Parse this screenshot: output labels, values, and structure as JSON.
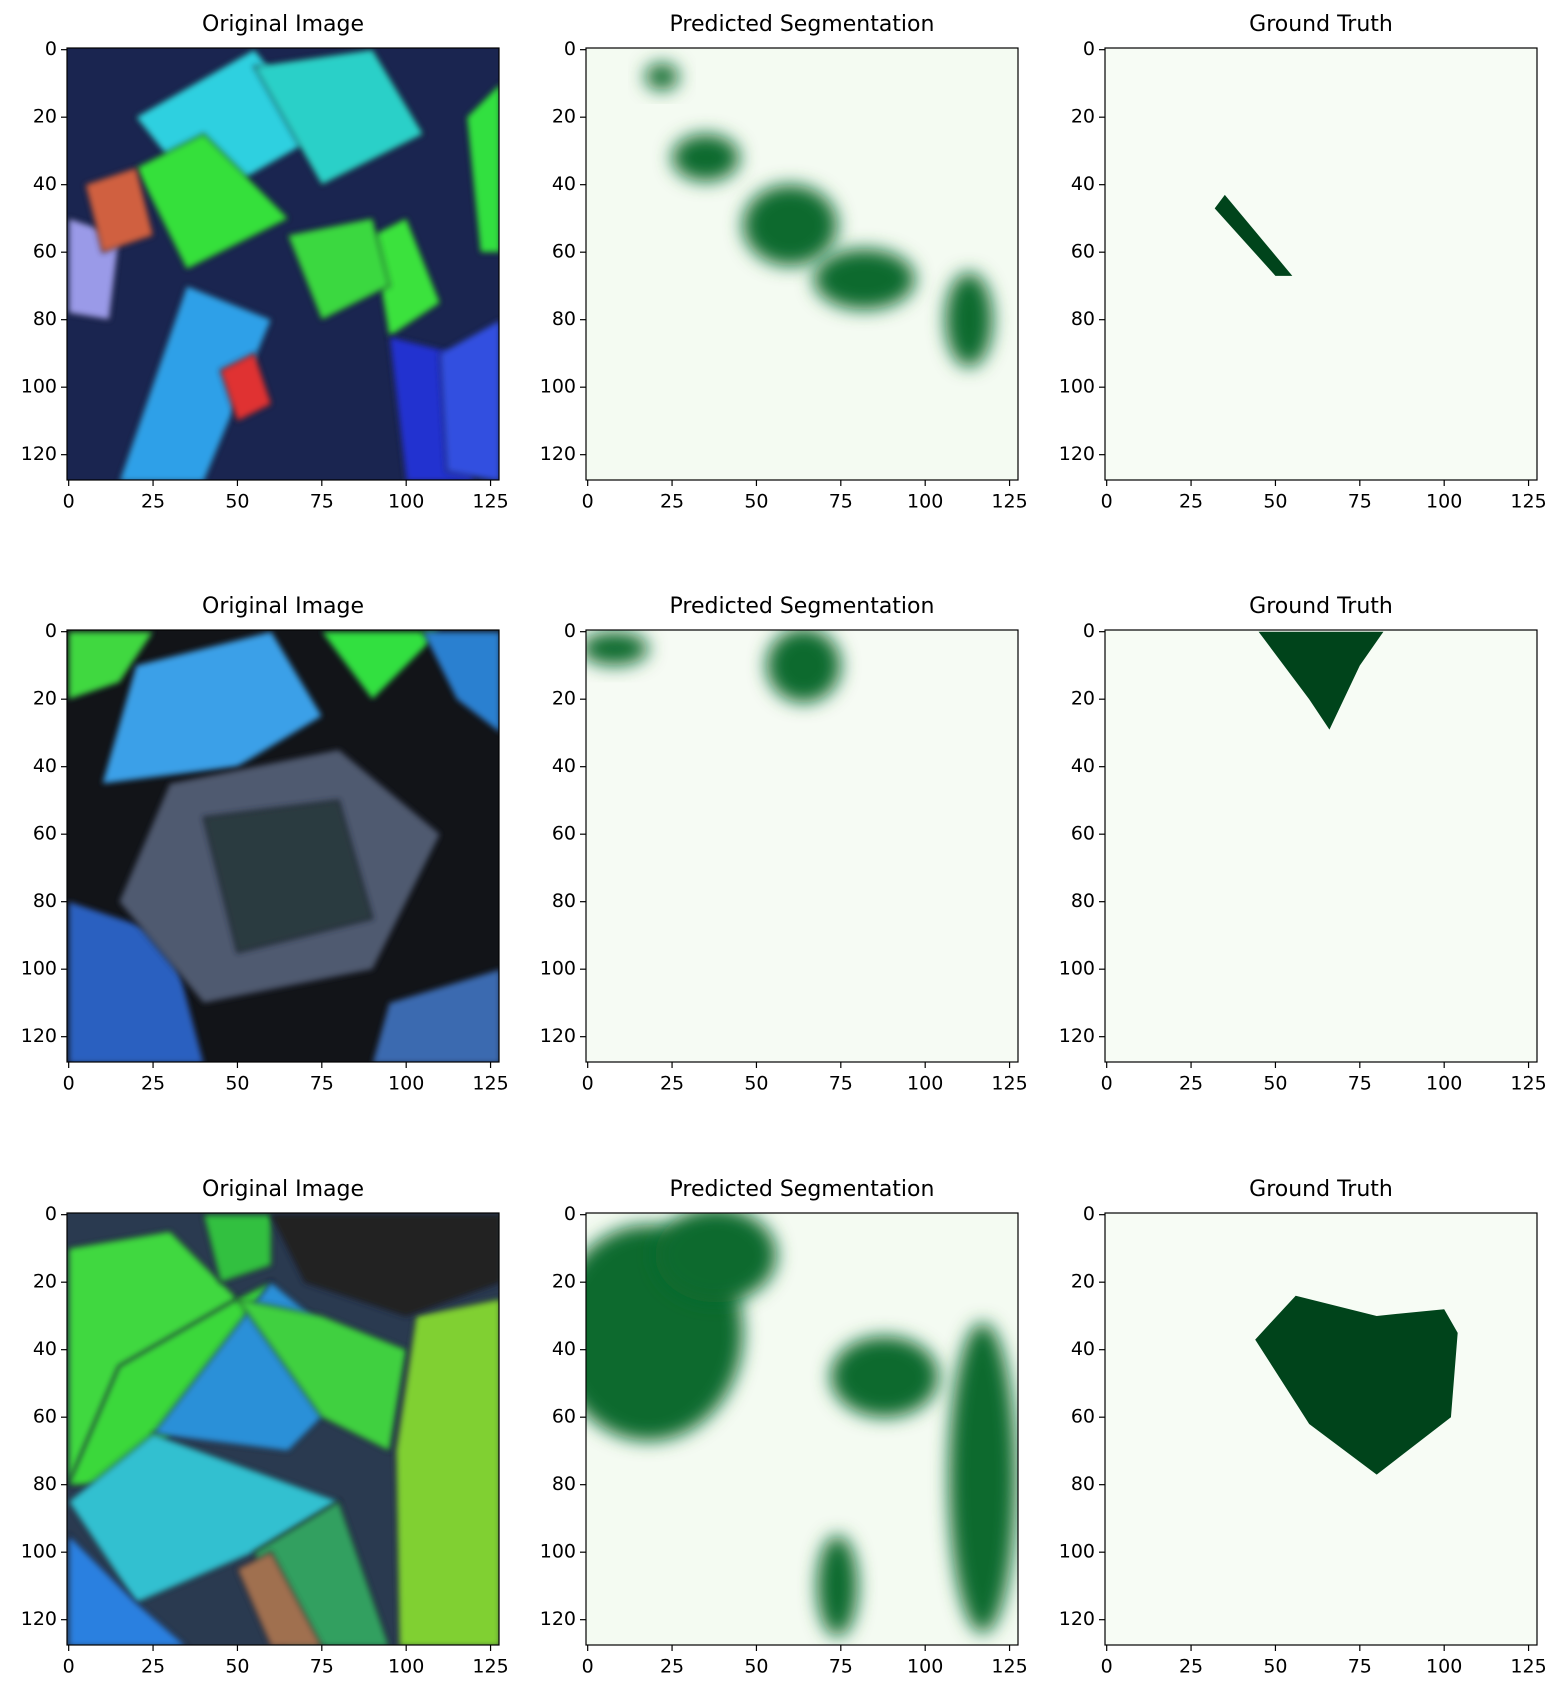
{
  "chart_data": [
    {
      "type": "image",
      "title": "Original Image",
      "xlim": [
        -0.5,
        127.5
      ],
      "ylim": [
        127.5,
        -0.5
      ],
      "xticks": [
        0,
        25,
        50,
        75,
        100,
        125
      ],
      "yticks": [
        0,
        20,
        40,
        60,
        80,
        100,
        120
      ]
    },
    {
      "type": "image",
      "title": "Predicted Segmentation",
      "xlim": [
        -0.5,
        127.5
      ],
      "ylim": [
        127.5,
        -0.5
      ],
      "xticks": [
        0,
        25,
        50,
        75,
        100,
        125
      ],
      "yticks": [
        0,
        20,
        40,
        60,
        80,
        100,
        120
      ]
    },
    {
      "type": "image",
      "title": "Ground Truth",
      "xlim": [
        -0.5,
        127.5
      ],
      "ylim": [
        127.5,
        -0.5
      ],
      "xticks": [
        0,
        25,
        50,
        75,
        100,
        125
      ],
      "yticks": [
        0,
        20,
        40,
        60,
        80,
        100,
        120
      ]
    },
    {
      "type": "image",
      "title": "Original Image",
      "xlim": [
        -0.5,
        127.5
      ],
      "ylim": [
        127.5,
        -0.5
      ],
      "xticks": [
        0,
        25,
        50,
        75,
        100,
        125
      ],
      "yticks": [
        0,
        20,
        40,
        60,
        80,
        100,
        120
      ]
    },
    {
      "type": "image",
      "title": "Predicted Segmentation",
      "xlim": [
        -0.5,
        127.5
      ],
      "ylim": [
        127.5,
        -0.5
      ],
      "xticks": [
        0,
        25,
        50,
        75,
        100,
        125
      ],
      "yticks": [
        0,
        20,
        40,
        60,
        80,
        100,
        120
      ]
    },
    {
      "type": "image",
      "title": "Ground Truth",
      "xlim": [
        -0.5,
        127.5
      ],
      "ylim": [
        127.5,
        -0.5
      ],
      "xticks": [
        0,
        25,
        50,
        75,
        100,
        125
      ],
      "yticks": [
        0,
        20,
        40,
        60,
        80,
        100,
        120
      ]
    },
    {
      "type": "image",
      "title": "Original Image",
      "xlim": [
        -0.5,
        127.5
      ],
      "ylim": [
        127.5,
        -0.5
      ],
      "xticks": [
        0,
        25,
        50,
        75,
        100,
        125
      ],
      "yticks": [
        0,
        20,
        40,
        60,
        80,
        100,
        120
      ]
    },
    {
      "type": "image",
      "title": "Predicted Segmentation",
      "xlim": [
        -0.5,
        127.5
      ],
      "ylim": [
        127.5,
        -0.5
      ],
      "xticks": [
        0,
        25,
        50,
        75,
        100,
        125
      ],
      "yticks": [
        0,
        20,
        40,
        60,
        80,
        100,
        120
      ]
    },
    {
      "type": "image",
      "title": "Ground Truth",
      "xlim": [
        -0.5,
        127.5
      ],
      "ylim": [
        127.5,
        -0.5
      ],
      "xticks": [
        0,
        25,
        50,
        75,
        100,
        125
      ],
      "yticks": [
        0,
        20,
        40,
        60,
        80,
        100,
        120
      ]
    }
  ]
}
